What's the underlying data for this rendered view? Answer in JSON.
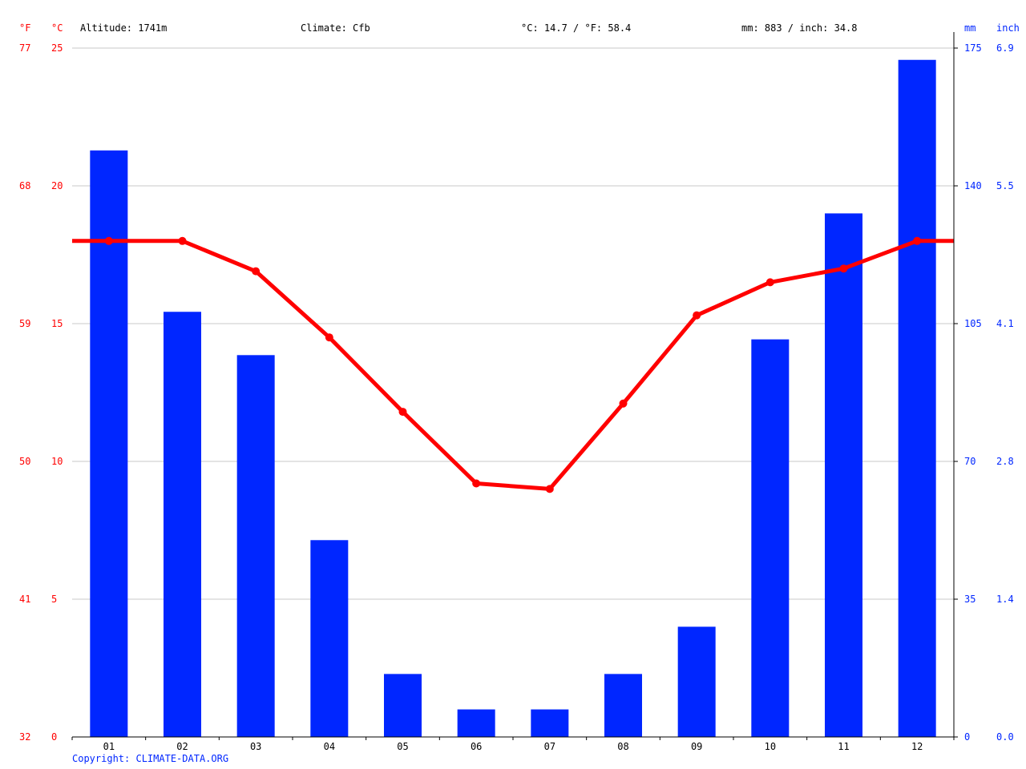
{
  "header": {
    "altitude": "Altitude: 1741m",
    "climate": "Climate: Cfb",
    "temp_avg": "°C: 14.7 / °F: 58.4",
    "precip_total": "mm: 883 / inch: 34.8"
  },
  "units": {
    "fahrenheit": "°F",
    "celsius": "°C",
    "mm": "mm",
    "inch": "inch"
  },
  "colors": {
    "temperature": "#ff0000",
    "precipitation": "#0026ff",
    "grid": "#c8c8c8",
    "axis": "#000000"
  },
  "copyright": "Copyright: CLIMATE-DATA.ORG",
  "chart_data": {
    "type": "bar",
    "categories": [
      "01",
      "02",
      "03",
      "04",
      "05",
      "06",
      "07",
      "08",
      "09",
      "10",
      "11",
      "12"
    ],
    "series": [
      {
        "type": "bar",
        "axis": "right",
        "unit": "mm",
        "values": [
          149,
          108,
          97,
          50,
          16,
          7,
          7,
          16,
          28,
          101,
          133,
          172
        ]
      },
      {
        "type": "line",
        "axis": "left",
        "unit": "°C",
        "values": [
          18.0,
          18.0,
          16.9,
          14.5,
          11.8,
          9.2,
          9.0,
          12.1,
          15.3,
          16.5,
          17.0,
          18.0
        ]
      }
    ],
    "y_left_celsius": {
      "range": [
        0,
        25
      ],
      "ticks": [
        "0",
        "5",
        "10",
        "15",
        "20",
        "25"
      ]
    },
    "y_left_fahrenheit": {
      "ticks": [
        "32",
        "41",
        "50",
        "59",
        "68",
        "77"
      ]
    },
    "y_right_mm": {
      "range": [
        0,
        175
      ],
      "ticks": [
        "0",
        "35",
        "70",
        "105",
        "140",
        "175"
      ]
    },
    "y_right_inch": {
      "ticks": [
        "0.0",
        "1.4",
        "2.8",
        "4.1",
        "5.5",
        "6.9"
      ]
    },
    "grid": true
  }
}
